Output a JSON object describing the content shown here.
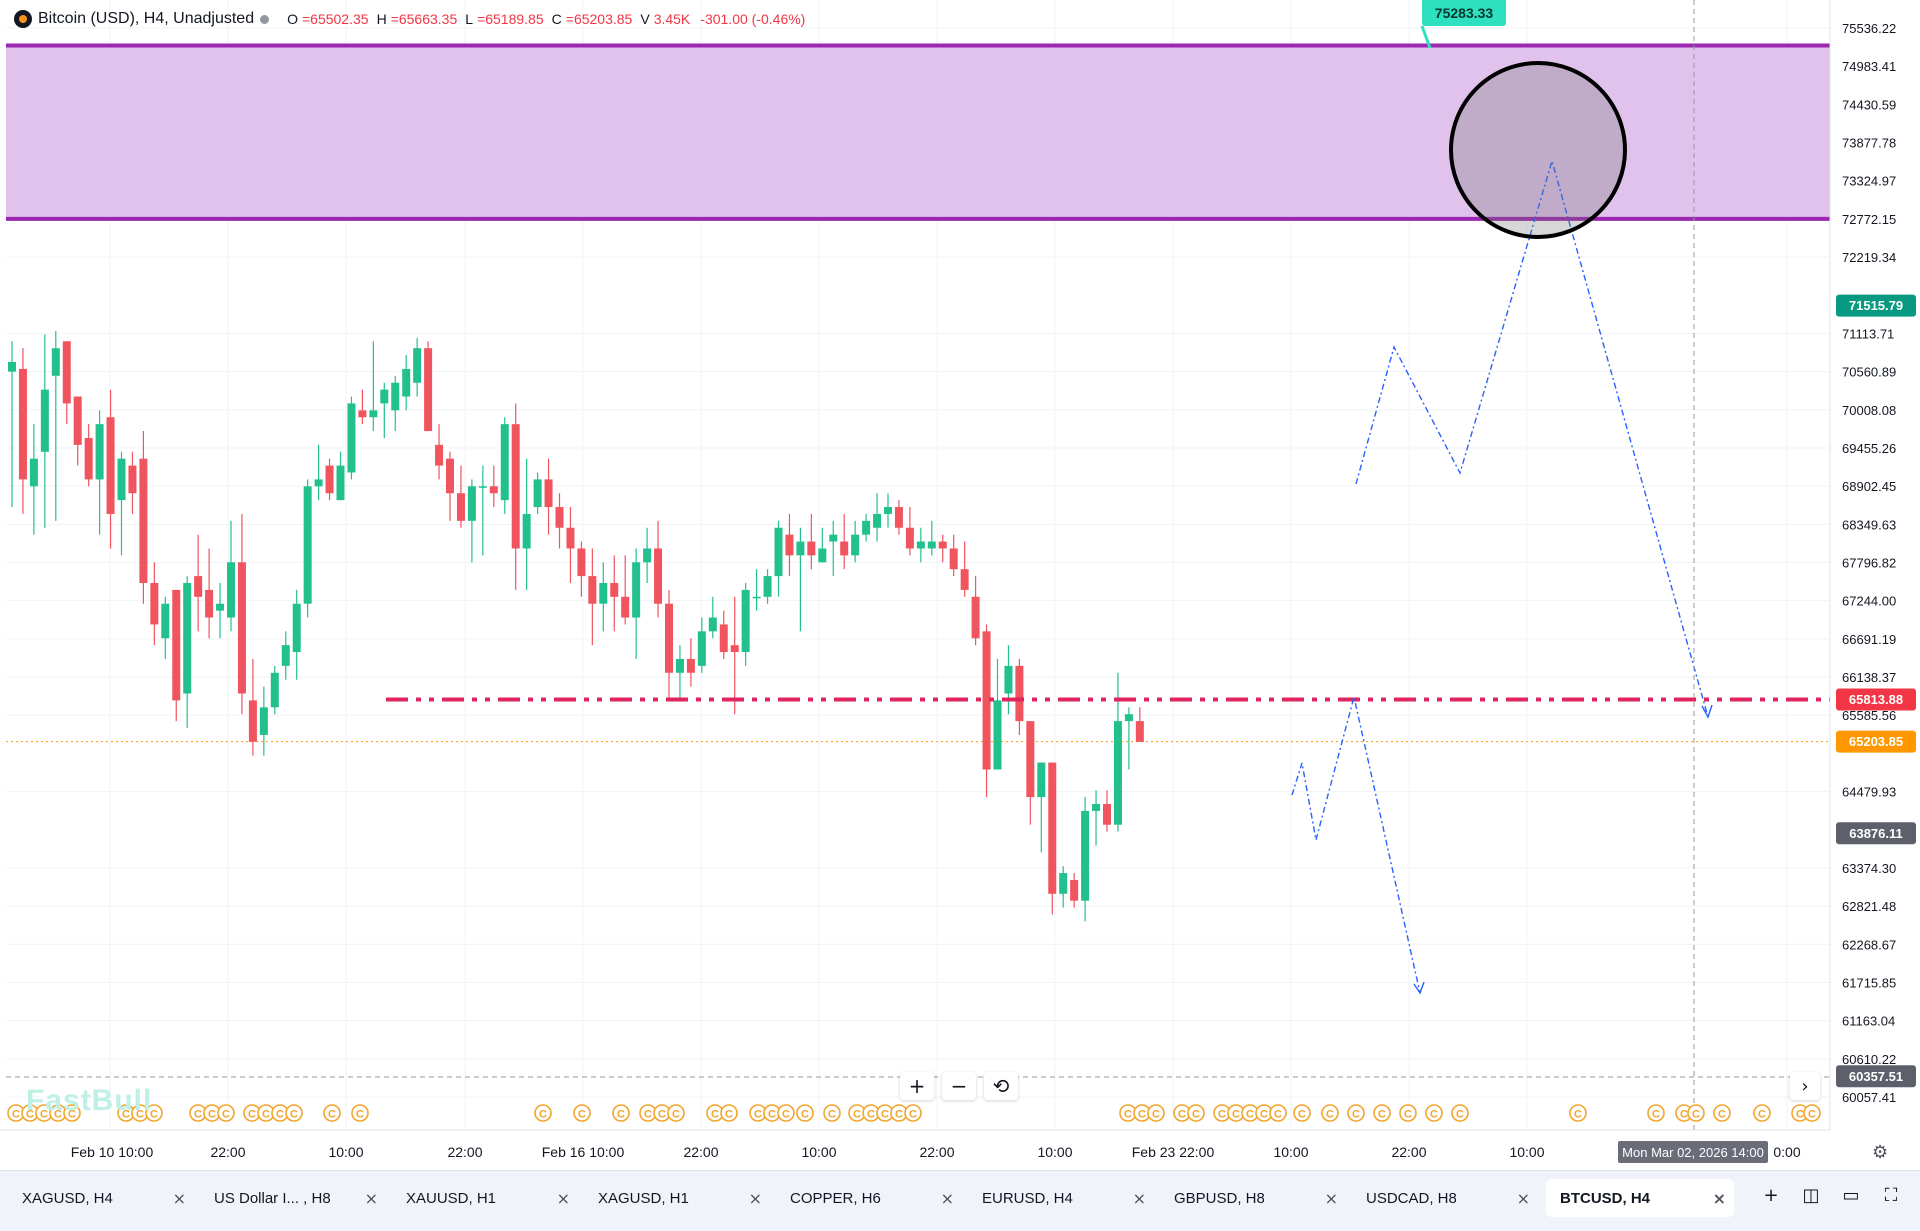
{
  "header": {
    "title": "Bitcoin (USD), H4, Unadjusted",
    "open_label": "O",
    "open": "=65502.35",
    "high_label": "H",
    "high": "=65663.35",
    "low_label": "L",
    "low": "=65189.85",
    "close_label": "C",
    "close": "=65203.85",
    "volume_label": "V",
    "volume": "3.45K",
    "change": "-301.00 (-0.46%)"
  },
  "price_axis": {
    "ticks": [
      "75536.22",
      "74983.41",
      "74430.59",
      "73877.78",
      "73324.97",
      "72772.15",
      "72219.34",
      "71113.71",
      "70560.89",
      "70008.08",
      "69455.26",
      "68902.45",
      "68349.63",
      "67796.82",
      "67244.00",
      "66691.19",
      "66138.37",
      "65585.56",
      "64479.93",
      "63374.30",
      "62821.48",
      "62268.67",
      "61715.85",
      "61163.04",
      "60610.22",
      "60057.41"
    ],
    "labels": [
      {
        "value": "71515.79",
        "color": "#089981"
      },
      {
        "value": "65813.88",
        "color": "#f23645"
      },
      {
        "value": "65203.85",
        "color": "#ff9800"
      },
      {
        "value": "63876.11",
        "color": "#5d606b"
      },
      {
        "value": "60357.51",
        "color": "#5d606b"
      }
    ]
  },
  "time_axis": {
    "ticks": [
      "Feb 10 10:00",
      "22:00",
      "10:00",
      "22:00",
      "Feb 16 10:00",
      "22:00",
      "10:00",
      "22:00",
      "10:00",
      "Feb 23 22:00",
      "10:00",
      "22:00",
      "10:00",
      "0:00"
    ],
    "crosshair_label": "Mon Mar 02, 2026 14:00"
  },
  "annotations": {
    "target_callout": "75283.33"
  },
  "colors": {
    "up": "#22c08d",
    "down": "#f0555f",
    "zone_fill": "#e0c2ec",
    "zone_border": "#9c27b0",
    "support_line": "#e0245e",
    "projection": "#2962ff"
  },
  "chart_data": {
    "type": "candlestick",
    "symbol": "BTCUSD",
    "timeframe": "H4",
    "resistance_zone": [
      72772.15,
      75283.33
    ],
    "support_level": 65813.88,
    "last_price": 65203.85,
    "candles": [
      [
        70560,
        71000,
        68600,
        70700
      ],
      [
        70600,
        70900,
        68500,
        69000
      ],
      [
        68900,
        69800,
        68200,
        69300
      ],
      [
        69400,
        71100,
        68300,
        70300
      ],
      [
        70500,
        71150,
        68400,
        70900
      ],
      [
        71000,
        71000,
        69800,
        70100
      ],
      [
        70200,
        70200,
        69200,
        69500
      ],
      [
        69600,
        69800,
        68900,
        69000
      ],
      [
        69000,
        70000,
        68200,
        69800
      ],
      [
        69900,
        70300,
        68000,
        68500
      ],
      [
        68700,
        69400,
        67900,
        69300
      ],
      [
        69200,
        69400,
        68500,
        68800
      ],
      [
        69300,
        69700,
        67200,
        67500
      ],
      [
        67500,
        67800,
        66600,
        66900
      ],
      [
        66700,
        67300,
        66400,
        67200
      ],
      [
        67400,
        67400,
        65500,
        65800
      ],
      [
        65900,
        67600,
        65400,
        67500
      ],
      [
        67600,
        68200,
        66800,
        67300
      ],
      [
        67400,
        68000,
        66700,
        67000
      ],
      [
        67100,
        67500,
        66700,
        67200
      ],
      [
        67000,
        68400,
        66800,
        67800
      ],
      [
        67800,
        68500,
        65600,
        65900
      ],
      [
        65800,
        66400,
        65000,
        65200
      ],
      [
        65300,
        66000,
        65000,
        65700
      ],
      [
        65700,
        66300,
        65600,
        66200
      ],
      [
        66300,
        66800,
        66100,
        66600
      ],
      [
        66500,
        67400,
        66100,
        67200
      ],
      [
        67200,
        69000,
        67000,
        68900
      ],
      [
        68900,
        69500,
        68700,
        69000
      ],
      [
        69200,
        69300,
        68700,
        68800
      ],
      [
        68700,
        69400,
        68700,
        69200
      ],
      [
        69100,
        70200,
        69000,
        70100
      ],
      [
        70000,
        70300,
        69800,
        69900
      ],
      [
        69900,
        71000,
        69700,
        70000
      ],
      [
        70100,
        70400,
        69600,
        70300
      ],
      [
        70000,
        70500,
        69700,
        70400
      ],
      [
        70200,
        70800,
        70000,
        70600
      ],
      [
        70400,
        71050,
        70200,
        70900
      ],
      [
        70900,
        71000,
        69700,
        69700
      ],
      [
        69500,
        69800,
        69000,
        69200
      ],
      [
        69300,
        69400,
        68400,
        68800
      ],
      [
        68800,
        69200,
        68300,
        68400
      ],
      [
        68400,
        69000,
        67800,
        68900
      ],
      [
        68900,
        69200,
        67900,
        68900
      ],
      [
        68900,
        69200,
        68600,
        68800
      ],
      [
        68700,
        69900,
        68500,
        69800
      ],
      [
        69800,
        70100,
        67400,
        68000
      ],
      [
        68000,
        69300,
        67400,
        68500
      ],
      [
        68600,
        69100,
        68500,
        69000
      ],
      [
        69000,
        69300,
        68200,
        68600
      ],
      [
        68600,
        68800,
        68000,
        68300
      ],
      [
        68300,
        68600,
        67500,
        68000
      ],
      [
        68000,
        68100,
        67300,
        67600
      ],
      [
        67600,
        68000,
        66600,
        67200
      ],
      [
        67200,
        67800,
        66800,
        67500
      ],
      [
        67500,
        67900,
        66800,
        67300
      ],
      [
        67300,
        67900,
        66900,
        67000
      ],
      [
        67000,
        68000,
        66400,
        67800
      ],
      [
        67800,
        68300,
        67500,
        68000
      ],
      [
        68000,
        68400,
        67000,
        67200
      ],
      [
        67200,
        67400,
        65800,
        66200
      ],
      [
        66200,
        66600,
        65800,
        66400
      ],
      [
        66400,
        66700,
        66000,
        66200
      ],
      [
        66300,
        67000,
        66200,
        66800
      ],
      [
        66800,
        67300,
        66700,
        67000
      ],
      [
        66900,
        67100,
        66400,
        66500
      ],
      [
        66600,
        67300,
        65600,
        66500
      ],
      [
        66500,
        67500,
        66300,
        67400
      ],
      [
        67300,
        67700,
        67100,
        67300
      ],
      [
        67300,
        67700,
        67200,
        67600
      ],
      [
        67600,
        68400,
        67300,
        68300
      ],
      [
        68200,
        68500,
        67600,
        67900
      ],
      [
        67900,
        68300,
        66800,
        68100
      ],
      [
        68100,
        68500,
        67700,
        67900
      ],
      [
        67800,
        68300,
        67800,
        68000
      ],
      [
        68100,
        68400,
        67600,
        68200
      ],
      [
        68100,
        68500,
        67700,
        67900
      ],
      [
        67900,
        68400,
        67800,
        68200
      ],
      [
        68200,
        68500,
        68100,
        68400
      ],
      [
        68300,
        68800,
        68100,
        68500
      ],
      [
        68500,
        68800,
        68300,
        68600
      ],
      [
        68600,
        68700,
        68200,
        68300
      ],
      [
        68300,
        68600,
        67900,
        68000
      ],
      [
        68000,
        68300,
        67800,
        68100
      ],
      [
        68000,
        68400,
        67900,
        68100
      ],
      [
        68100,
        68200,
        67800,
        68000
      ],
      [
        68000,
        68200,
        67600,
        67700
      ],
      [
        67700,
        68100,
        67300,
        67400
      ],
      [
        67300,
        67600,
        66600,
        66700
      ],
      [
        66800,
        66900,
        64400,
        64800
      ],
      [
        64800,
        66400,
        64800,
        65800
      ],
      [
        65900,
        66600,
        65600,
        66300
      ],
      [
        66300,
        66400,
        65300,
        65500
      ],
      [
        65500,
        65500,
        64000,
        64400
      ],
      [
        64400,
        64900,
        63600,
        64900
      ],
      [
        64900,
        64900,
        62700,
        63000
      ],
      [
        63000,
        63400,
        62800,
        63300
      ],
      [
        63200,
        63300,
        62800,
        62900
      ],
      [
        62900,
        64400,
        62600,
        64200
      ],
      [
        64200,
        64500,
        63700,
        64300
      ],
      [
        64300,
        64500,
        63900,
        64000
      ],
      [
        64000,
        66200,
        63900,
        65500
      ],
      [
        65500,
        65700,
        64800,
        65600
      ],
      [
        65500,
        65700,
        65200,
        65200
      ]
    ],
    "projection_path": [
      [
        62700,
        64200
      ],
      [
        63000,
        64500
      ],
      [
        66100,
        69000
      ],
      [
        69000,
        69100
      ],
      [
        71300,
        73400
      ],
      [
        73400,
        73400
      ],
      [
        65300,
        65400
      ]
    ]
  },
  "tabs": [
    {
      "label": "XAGUSD, H4"
    },
    {
      "label": "US Dollar I... , H8"
    },
    {
      "label": "XAUUSD, H1"
    },
    {
      "label": "XAGUSD, H1"
    },
    {
      "label": "COPPER, H6"
    },
    {
      "label": "EURUSD, H4"
    },
    {
      "label": "GBPUSD, H8"
    },
    {
      "label": "USDCAD, H8"
    },
    {
      "label": "BTCUSD, H4"
    }
  ],
  "tab_close_icon": "×",
  "watermark": "FastBull",
  "zoom": {
    "in": "+",
    "out": "−",
    "reset": "⟲"
  },
  "scroll_right": "›",
  "settings_icon": "⚙",
  "toolbar_icons": {
    "add": "+",
    "layout": "◫",
    "window": "▭",
    "fullscreen": "⛶"
  },
  "event_marker": "C"
}
